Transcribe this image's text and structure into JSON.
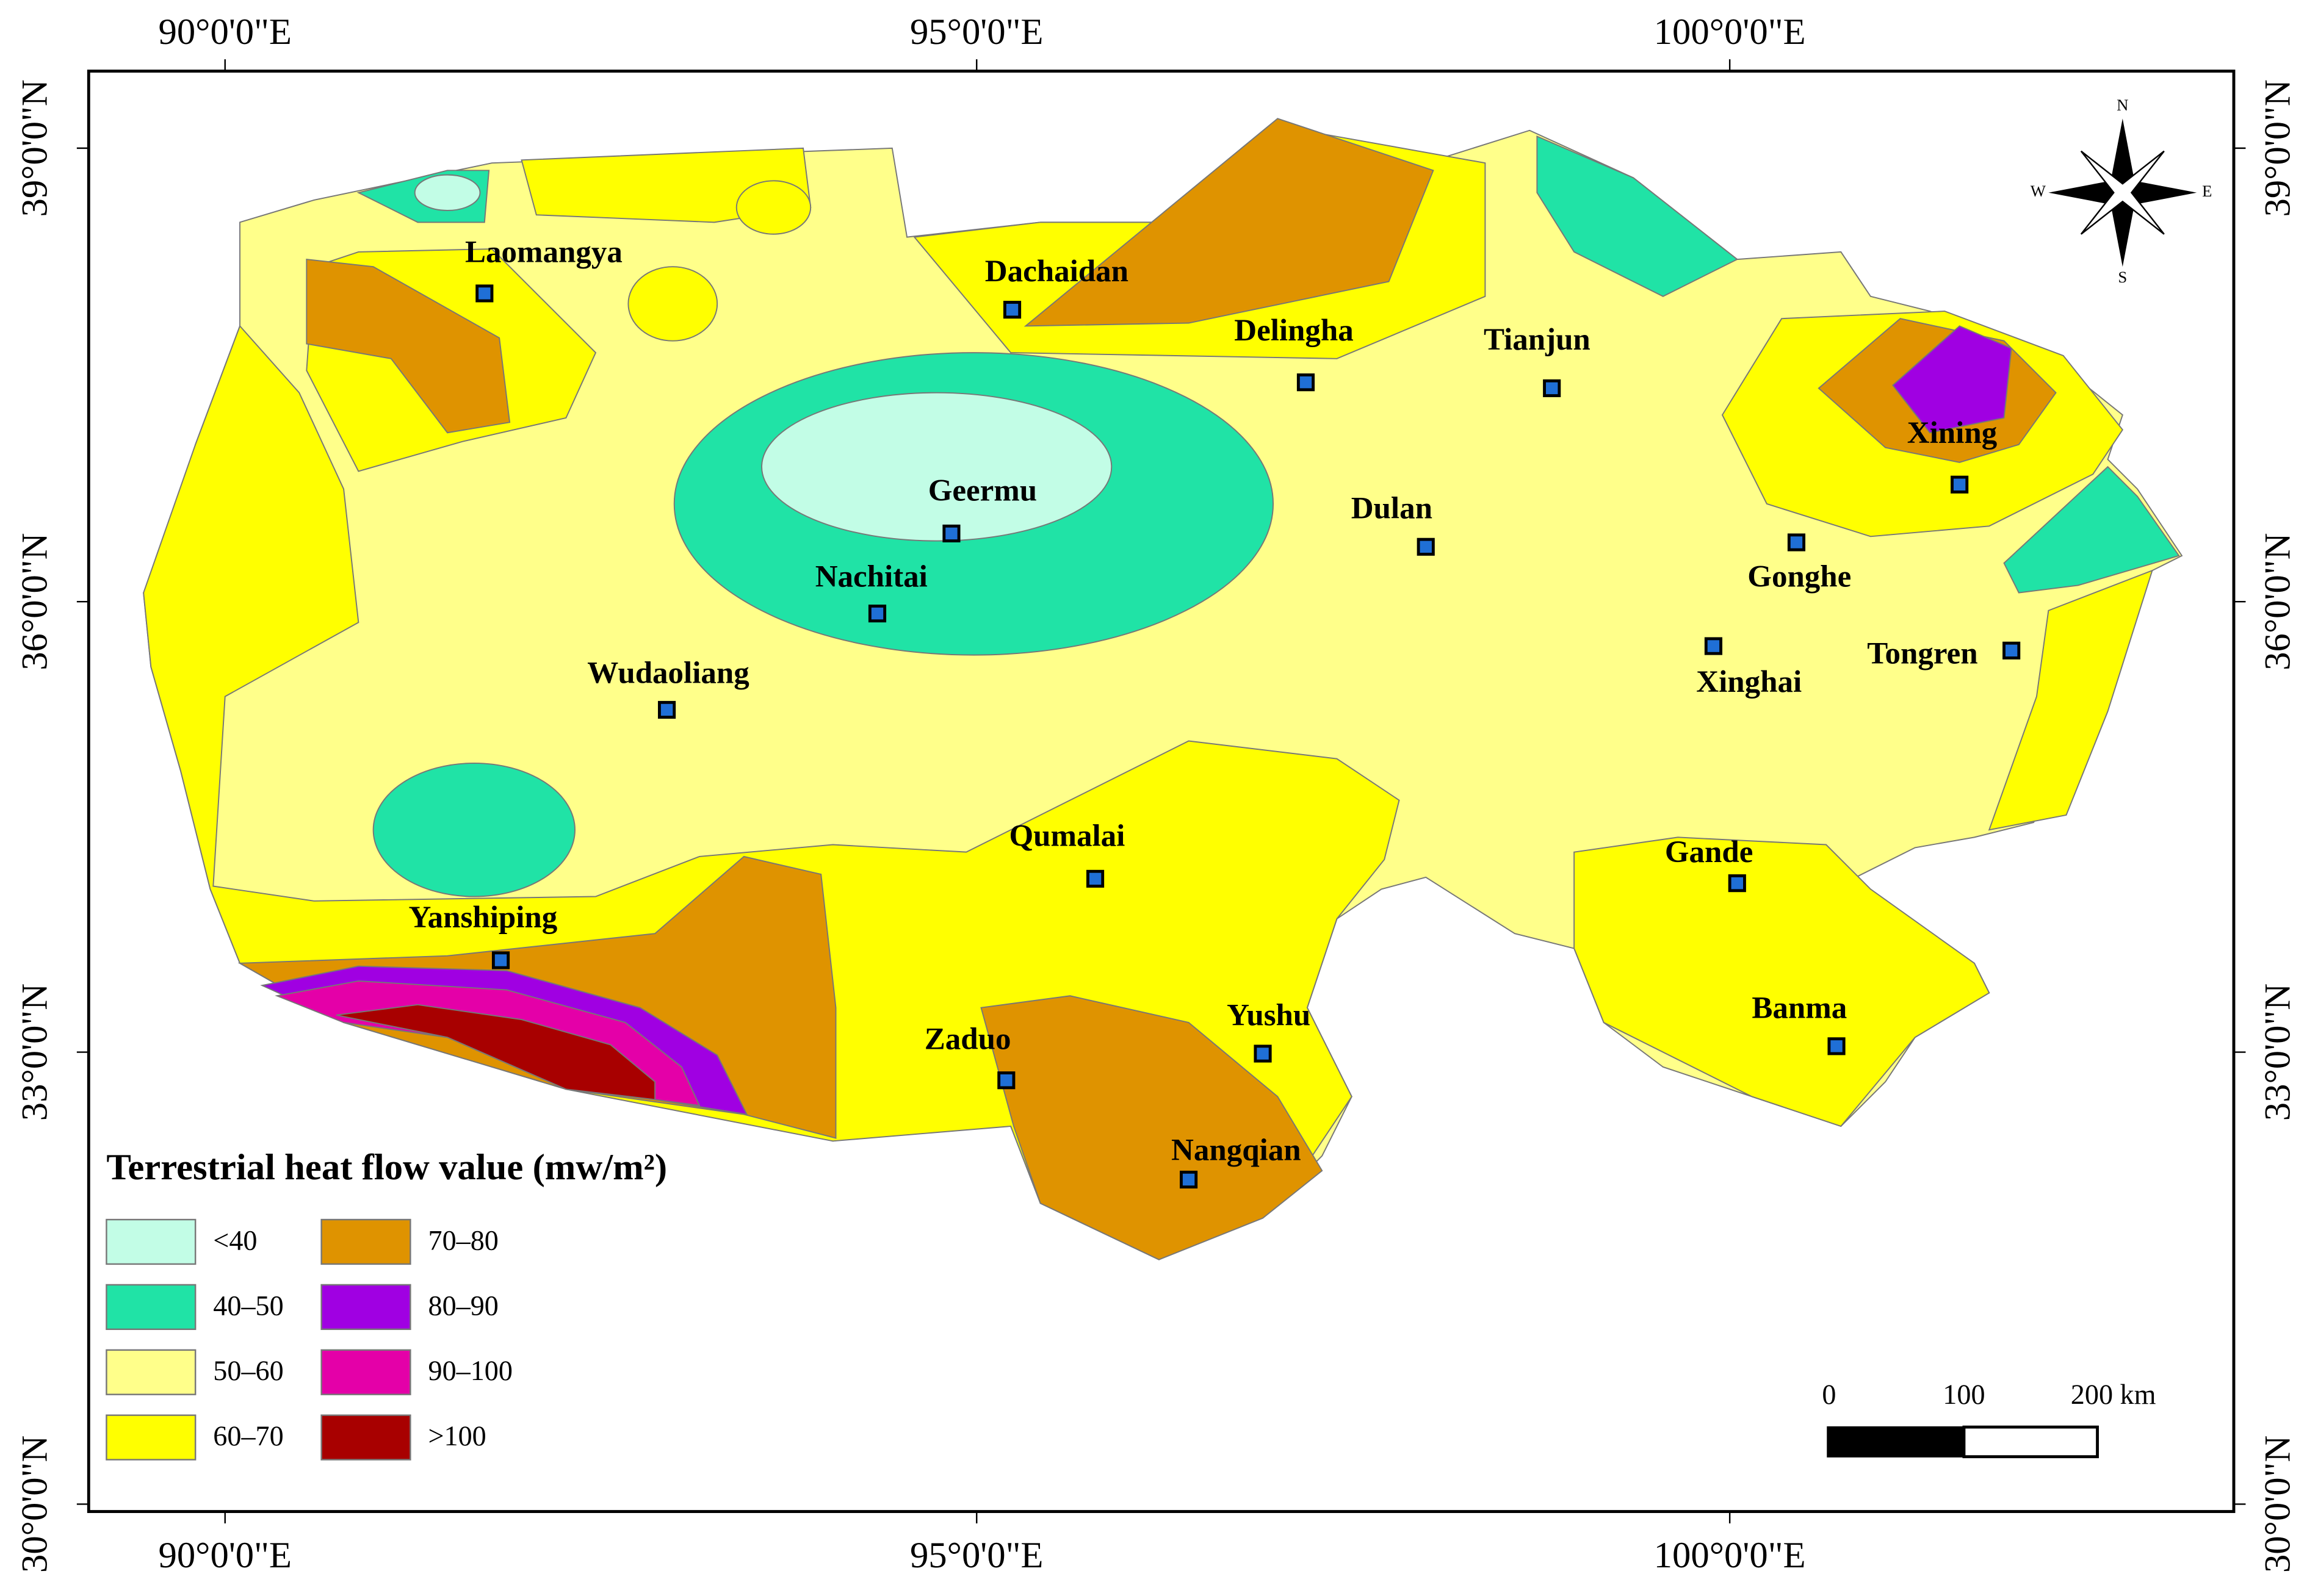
{
  "map": {
    "lon_ticks": [
      "90°0'0\"E",
      "95°0'0\"E",
      "100°0'0\"E"
    ],
    "lat_ticks": [
      "39°0'0\"N",
      "36°0'0\"N",
      "33°0'0\"N",
      "30°0'0\"N"
    ],
    "cities": [
      "Laomangya",
      "Dachaidan",
      "Delingha",
      "Tianjun",
      "Xining",
      "Geermu",
      "Dulan",
      "Gonghe",
      "Nachitai",
      "Xinghai",
      "Tongren",
      "Wudaoliang",
      "Qumalai",
      "Gande",
      "Yanshiping",
      "Banma",
      "Yushu",
      "Zaduo",
      "Nangqian"
    ],
    "compass": {
      "n": "N",
      "s": "S",
      "e": "E",
      "w": "W"
    },
    "scale_bar": [
      "0",
      "100",
      "200 km"
    ]
  },
  "legend": {
    "title": "Terrestrial heat flow value (mw/m²)",
    "items": [
      {
        "label": "<40",
        "color": "#c2fde6"
      },
      {
        "label": "40–50",
        "color": "#20e3a6"
      },
      {
        "label": "50–60",
        "color": "#ffff8a"
      },
      {
        "label": "60–70",
        "color": "#ffff00"
      },
      {
        "label": "70–80",
        "color": "#df9300"
      },
      {
        "label": "80–90",
        "color": "#a000e2"
      },
      {
        "label": "90–100",
        "color": "#e400a8"
      },
      {
        "label": ">100",
        "color": "#a80000"
      }
    ]
  }
}
